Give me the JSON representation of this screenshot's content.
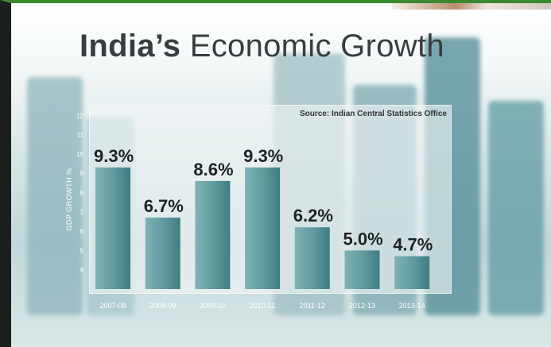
{
  "chart_data": {
    "type": "bar",
    "title_bold": "India’s",
    "title_rest": " Economic Growth",
    "source": "Source: Indian Central Statistics Office",
    "xlabel": "",
    "ylabel": "GDP GROWTH %",
    "ylim": [
      3,
      12
    ],
    "yticks": [
      4,
      5,
      6,
      7,
      8,
      9,
      10,
      11,
      12
    ],
    "categories": [
      "2007-08",
      "2008-09",
      "2009-10",
      "2010-11",
      "2011-12",
      "2012-13",
      "2013-14"
    ],
    "values": [
      9.3,
      6.7,
      8.6,
      9.3,
      6.2,
      5.0,
      4.7
    ],
    "value_labels": [
      "9.3%",
      "6.7%",
      "8.6%",
      "9.3%",
      "6.2%",
      "5.0%",
      "4.7%"
    ],
    "grid": false,
    "colors": {
      "bar_light": "#7fb3b6",
      "bar_dark": "#3f7d82",
      "label": "#1e2224",
      "tick": "#ffffff"
    }
  }
}
